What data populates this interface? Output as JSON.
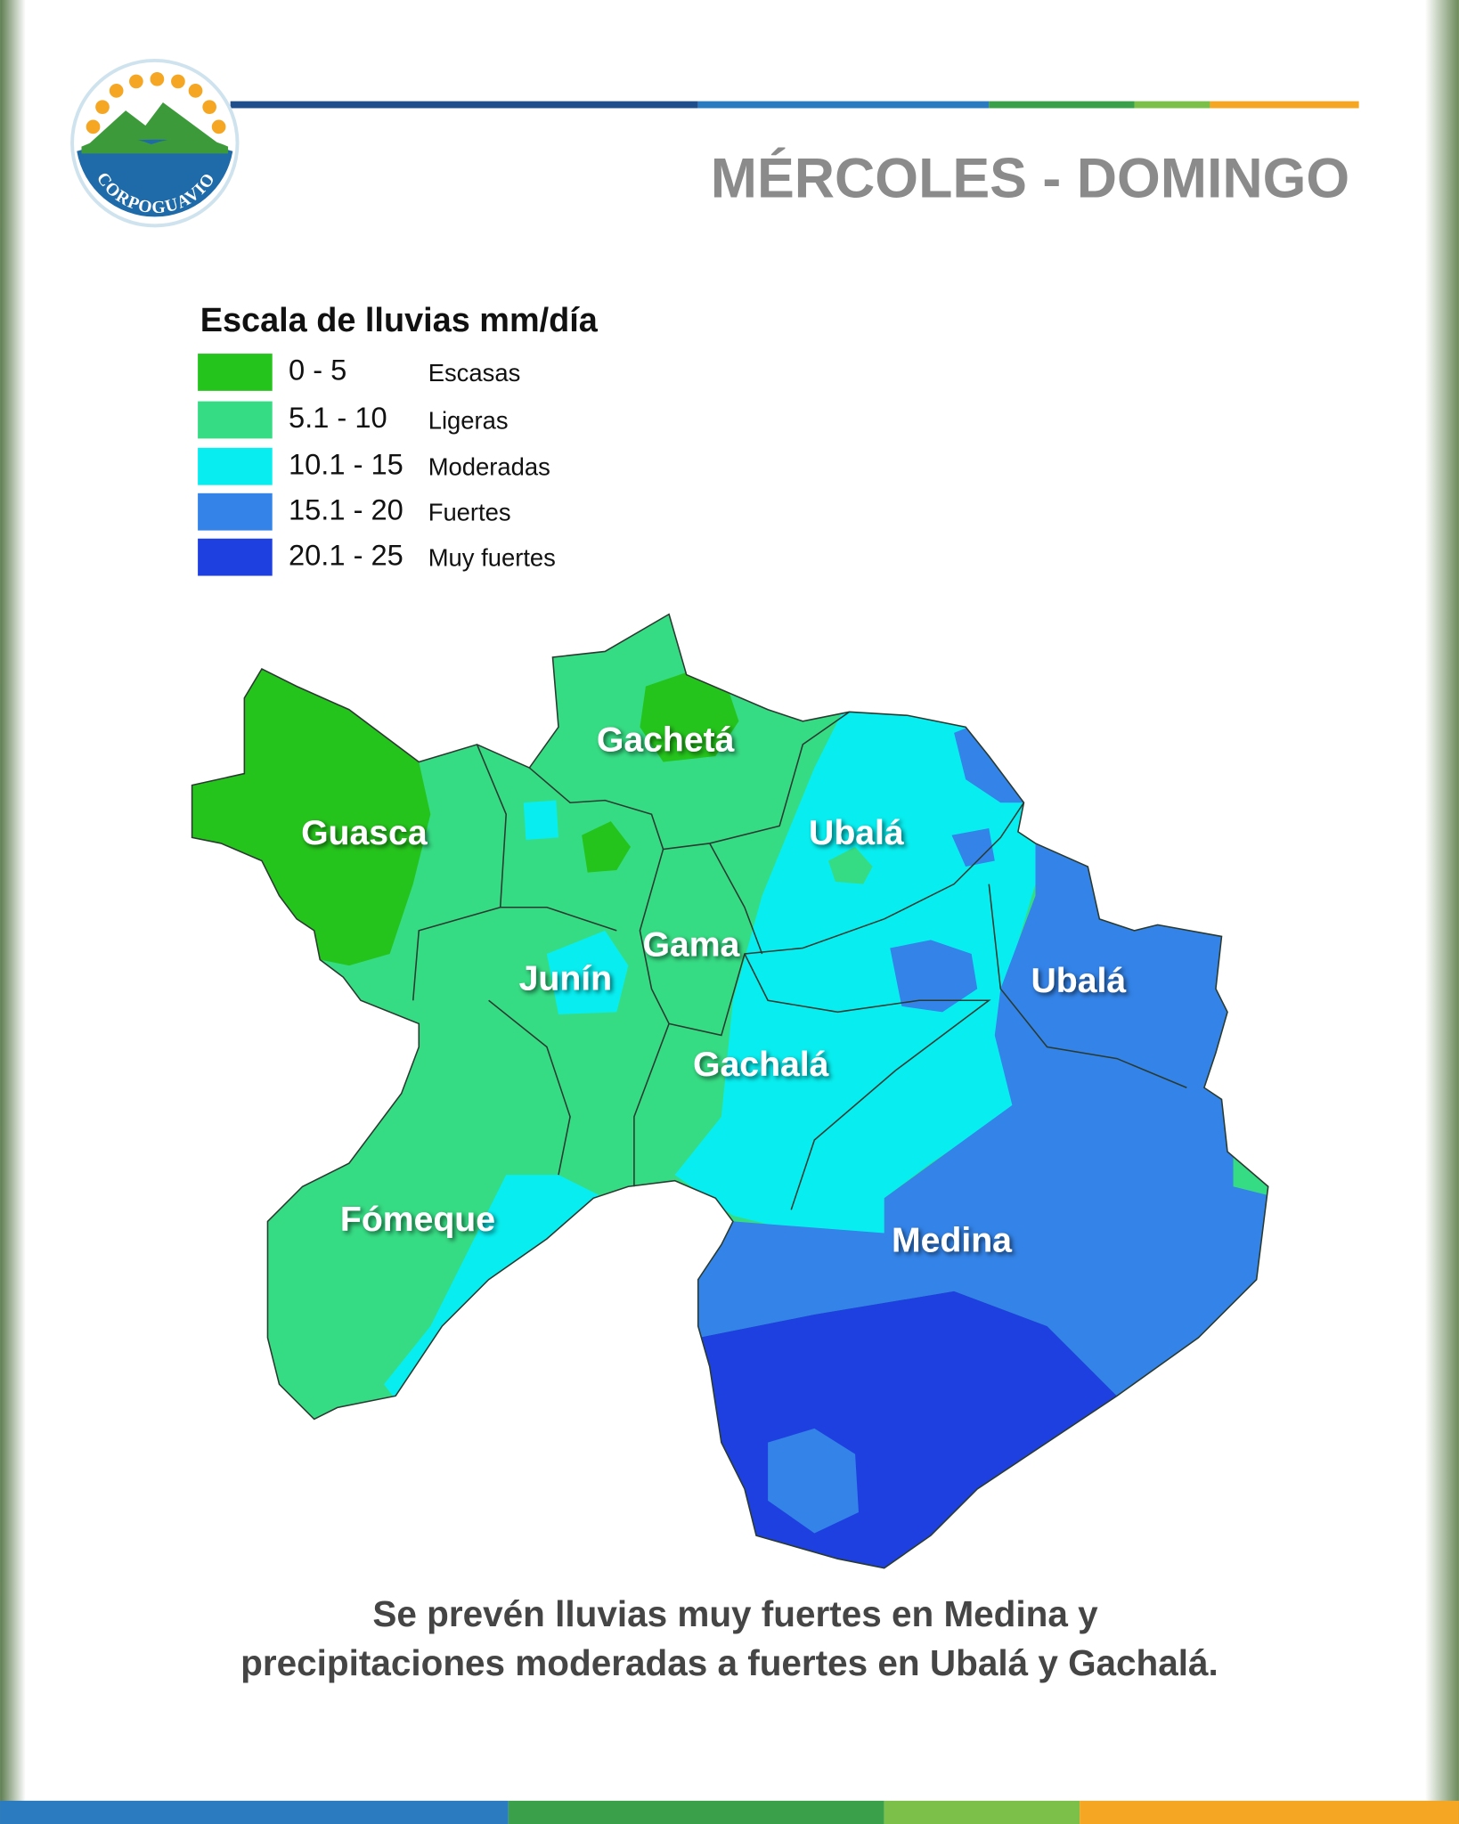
{
  "logo": {
    "text": "CORPOGUAVIO"
  },
  "header": {
    "title": "MÉRCOLES - DOMINGO"
  },
  "legend": {
    "title": "Escala de lluvias mm/día",
    "items": [
      {
        "range": "0 - 5",
        "label": "Escasas",
        "color": "#25c41c"
      },
      {
        "range": "5.1 - 10",
        "label": "Ligeras",
        "color": "#36dc84"
      },
      {
        "range": "10.1 - 15",
        "label": "Moderadas",
        "color": "#08eef0"
      },
      {
        "range": "15.1 - 20",
        "label": "Fuertes",
        "color": "#3383e8"
      },
      {
        "range": "20.1 - 25",
        "label": "Muy fuertes",
        "color": "#1f40e0"
      }
    ]
  },
  "map": {
    "labels": [
      "Gachetá",
      "Guasca",
      "Ubalá",
      "Gama",
      "Junín",
      "Ubalá",
      "Gachalá",
      "Fómeque",
      "Medina"
    ]
  },
  "caption": {
    "lines": [
      "Se prevén lluvias muy fuertes en Medina y",
      "precipitaciones moderadas a fuertes en Ubalá y Gachalá."
    ]
  }
}
